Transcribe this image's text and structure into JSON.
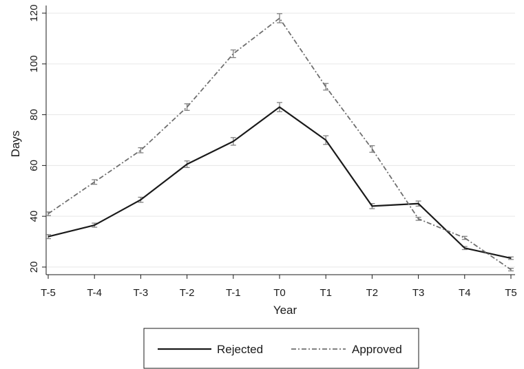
{
  "chart_data": {
    "type": "line",
    "title": "",
    "xlabel": "Year",
    "ylabel": "Days",
    "categories": [
      "T-5",
      "T-4",
      "T-3",
      "T-2",
      "T-1",
      "T0",
      "T1",
      "T2",
      "T3",
      "T4",
      "T5"
    ],
    "yticks": [
      20,
      40,
      60,
      80,
      100,
      120
    ],
    "ylim": [
      17,
      123
    ],
    "grid": true,
    "legend_position": "bottom",
    "series": [
      {
        "name": "Rejected",
        "color": "#1a1a1a",
        "style": "solid",
        "values": [
          32,
          36.5,
          46.5,
          60.5,
          69.5,
          83,
          70,
          44,
          45,
          27.5,
          23.5
        ],
        "ci_low": [
          31.2,
          35.7,
          45.5,
          59.2,
          68.0,
          81.2,
          68.3,
          43.0,
          44.0,
          26.9,
          23.0
        ],
        "ci_high": [
          32.8,
          37.3,
          47.5,
          61.8,
          71.0,
          84.8,
          71.7,
          45.0,
          46.0,
          28.1,
          24.0
        ]
      },
      {
        "name": "Approved",
        "color": "#6e6e6e",
        "style": "dash-dot",
        "values": [
          41,
          53.5,
          66,
          83,
          104,
          118,
          91,
          66.5,
          39,
          31.5,
          19
        ],
        "ci_low": [
          40.3,
          52.6,
          65.0,
          81.7,
          102.5,
          116.2,
          89.7,
          65.2,
          38.4,
          30.9,
          18.5
        ],
        "ci_high": [
          41.7,
          54.4,
          67.0,
          84.3,
          105.5,
          119.8,
          92.3,
          67.8,
          39.6,
          32.1,
          19.5
        ]
      }
    ]
  }
}
